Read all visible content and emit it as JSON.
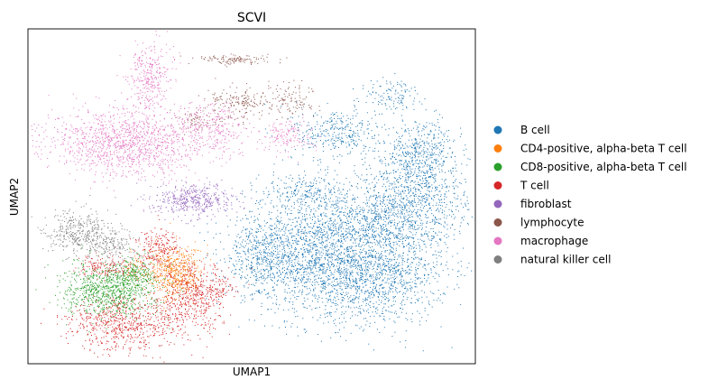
{
  "chart_data": {
    "type": "scatter",
    "title": "SCVI",
    "xlabel": "UMAP1",
    "ylabel": "UMAP2",
    "xlim": [
      0,
      100
    ],
    "ylim": [
      0,
      100
    ],
    "ticks": "none",
    "grid": false,
    "legend": "right-outside",
    "series": [
      {
        "name": "B cell",
        "color": "#1f77b4",
        "clusters": [
          {
            "cx": 76,
            "cy": 28,
            "sx": 9,
            "sy": 8,
            "n": 1700
          },
          {
            "cx": 64,
            "cy": 35,
            "sx": 8,
            "sy": 9,
            "n": 1200
          },
          {
            "cx": 52,
            "cy": 32,
            "sx": 4,
            "sy": 6,
            "n": 500
          },
          {
            "cx": 86,
            "cy": 50,
            "sx": 6,
            "sy": 7,
            "n": 700
          },
          {
            "cx": 88,
            "cy": 63,
            "sx": 4,
            "sy": 5,
            "n": 450
          },
          {
            "cx": 69,
            "cy": 69,
            "sx": 5,
            "sy": 4,
            "n": 350
          },
          {
            "cx": 82,
            "cy": 80,
            "sx": 3,
            "sy": 3,
            "n": 120
          },
          {
            "cx": 62,
            "cy": 52,
            "sx": 5,
            "sy": 2.5,
            "n": 200
          },
          {
            "cx": 78,
            "cy": 44,
            "sx": 8,
            "sy": 4,
            "n": 450
          }
        ]
      },
      {
        "name": "CD4-positive, alpha-beta T cell",
        "color": "#ff7f0e",
        "clusters": [
          {
            "cx": 33,
            "cy": 27,
            "sx": 3,
            "sy": 4,
            "n": 520
          },
          {
            "cx": 24,
            "cy": 28,
            "sx": 1.5,
            "sy": 3,
            "n": 60
          }
        ]
      },
      {
        "name": "CD8-positive, alpha-beta T cell",
        "color": "#2ca02c",
        "clusters": [
          {
            "cx": 18,
            "cy": 22,
            "sx": 5,
            "sy": 4,
            "n": 900
          },
          {
            "cx": 24,
            "cy": 27,
            "sx": 2.5,
            "sy": 2.5,
            "n": 200
          }
        ]
      },
      {
        "name": "T cell",
        "color": "#d62728",
        "clusters": [
          {
            "cx": 22,
            "cy": 12,
            "sx": 7,
            "sy": 4,
            "n": 700
          },
          {
            "cx": 37,
            "cy": 20,
            "sx": 4,
            "sy": 5,
            "n": 500
          },
          {
            "cx": 29,
            "cy": 35,
            "sx": 2.5,
            "sy": 3,
            "n": 220
          },
          {
            "cx": 17,
            "cy": 29,
            "sx": 3,
            "sy": 1.8,
            "n": 150
          },
          {
            "cx": 43,
            "cy": 22,
            "sx": 2,
            "sy": 2,
            "n": 60
          }
        ]
      },
      {
        "name": "fibroblast",
        "color": "#9467bd",
        "clusters": [
          {
            "cx": 37,
            "cy": 49,
            "sx": 4.5,
            "sy": 2.5,
            "n": 450
          }
        ]
      },
      {
        "name": "lymphocyte",
        "color": "#8c564b",
        "clusters": [
          {
            "cx": 46,
            "cy": 91,
            "sx": 4,
            "sy": 0.7,
            "n": 120
          },
          {
            "cx": 48,
            "cy": 78,
            "sx": 4,
            "sy": 2.5,
            "n": 180
          },
          {
            "cx": 59,
            "cy": 79,
            "sx": 2.5,
            "sy": 2.5,
            "n": 100
          },
          {
            "cx": 38,
            "cy": 73,
            "sx": 2,
            "sy": 2,
            "n": 60
          }
        ]
      },
      {
        "name": "macrophage",
        "color": "#e377c2",
        "clusters": [
          {
            "cx": 22,
            "cy": 66,
            "sx": 9,
            "sy": 5,
            "n": 1300
          },
          {
            "cx": 27,
            "cy": 86,
            "sx": 2.5,
            "sy": 5,
            "n": 320
          },
          {
            "cx": 41,
            "cy": 71,
            "sx": 4,
            "sy": 4,
            "n": 280
          },
          {
            "cx": 58,
            "cy": 68,
            "sx": 3,
            "sy": 2.5,
            "n": 150
          }
        ]
      },
      {
        "name": "natural killer cell",
        "color": "#7f7f7f",
        "clusters": [
          {
            "cx": 11,
            "cy": 39,
            "sx": 4,
            "sy": 3.5,
            "n": 400
          },
          {
            "cx": 19,
            "cy": 35,
            "sx": 3,
            "sy": 2.5,
            "n": 150
          }
        ]
      }
    ]
  }
}
